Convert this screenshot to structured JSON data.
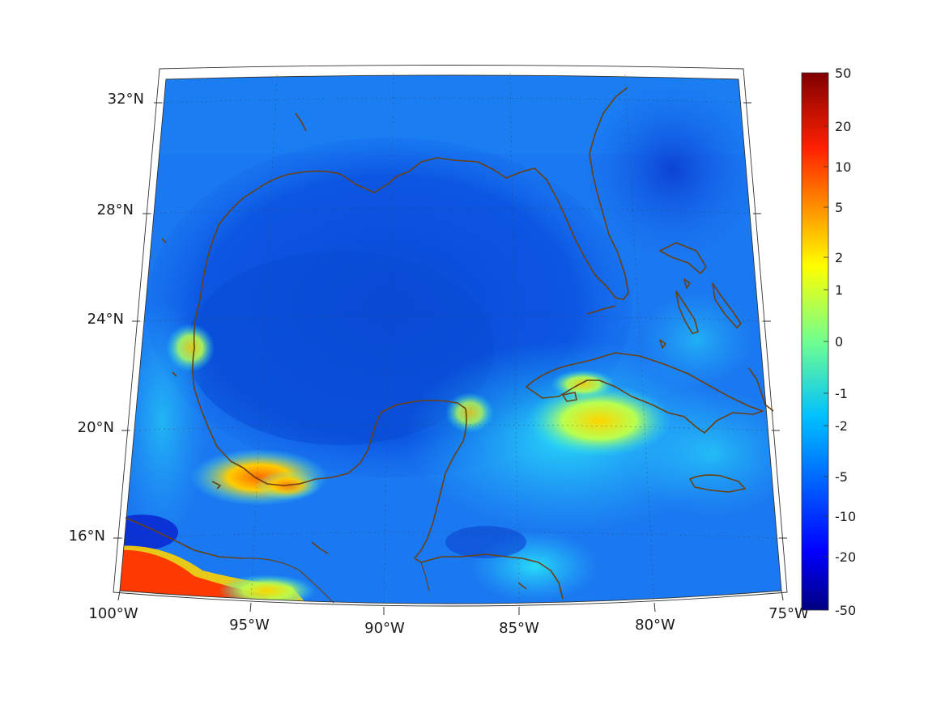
{
  "map": {
    "lon_labels": [
      "100°W",
      "95°W",
      "90°W",
      "85°W",
      "80°W",
      "75°W"
    ],
    "lat_labels": [
      "32°N",
      "28°N",
      "24°N",
      "20°N",
      "16°N"
    ],
    "colorbar": {
      "tick_labels": [
        "50",
        "20",
        "10",
        "5",
        "2",
        "1",
        "0",
        "-1",
        "-2",
        "-5",
        "-10",
        "-20",
        "-50"
      ],
      "colormap": "jet",
      "scale": "symmetric-nonlinear"
    },
    "colors": {
      "coastline": "#6b3f12",
      "background_field": "#1a78f0",
      "gulf_interior": "#0a4fd8"
    }
  }
}
